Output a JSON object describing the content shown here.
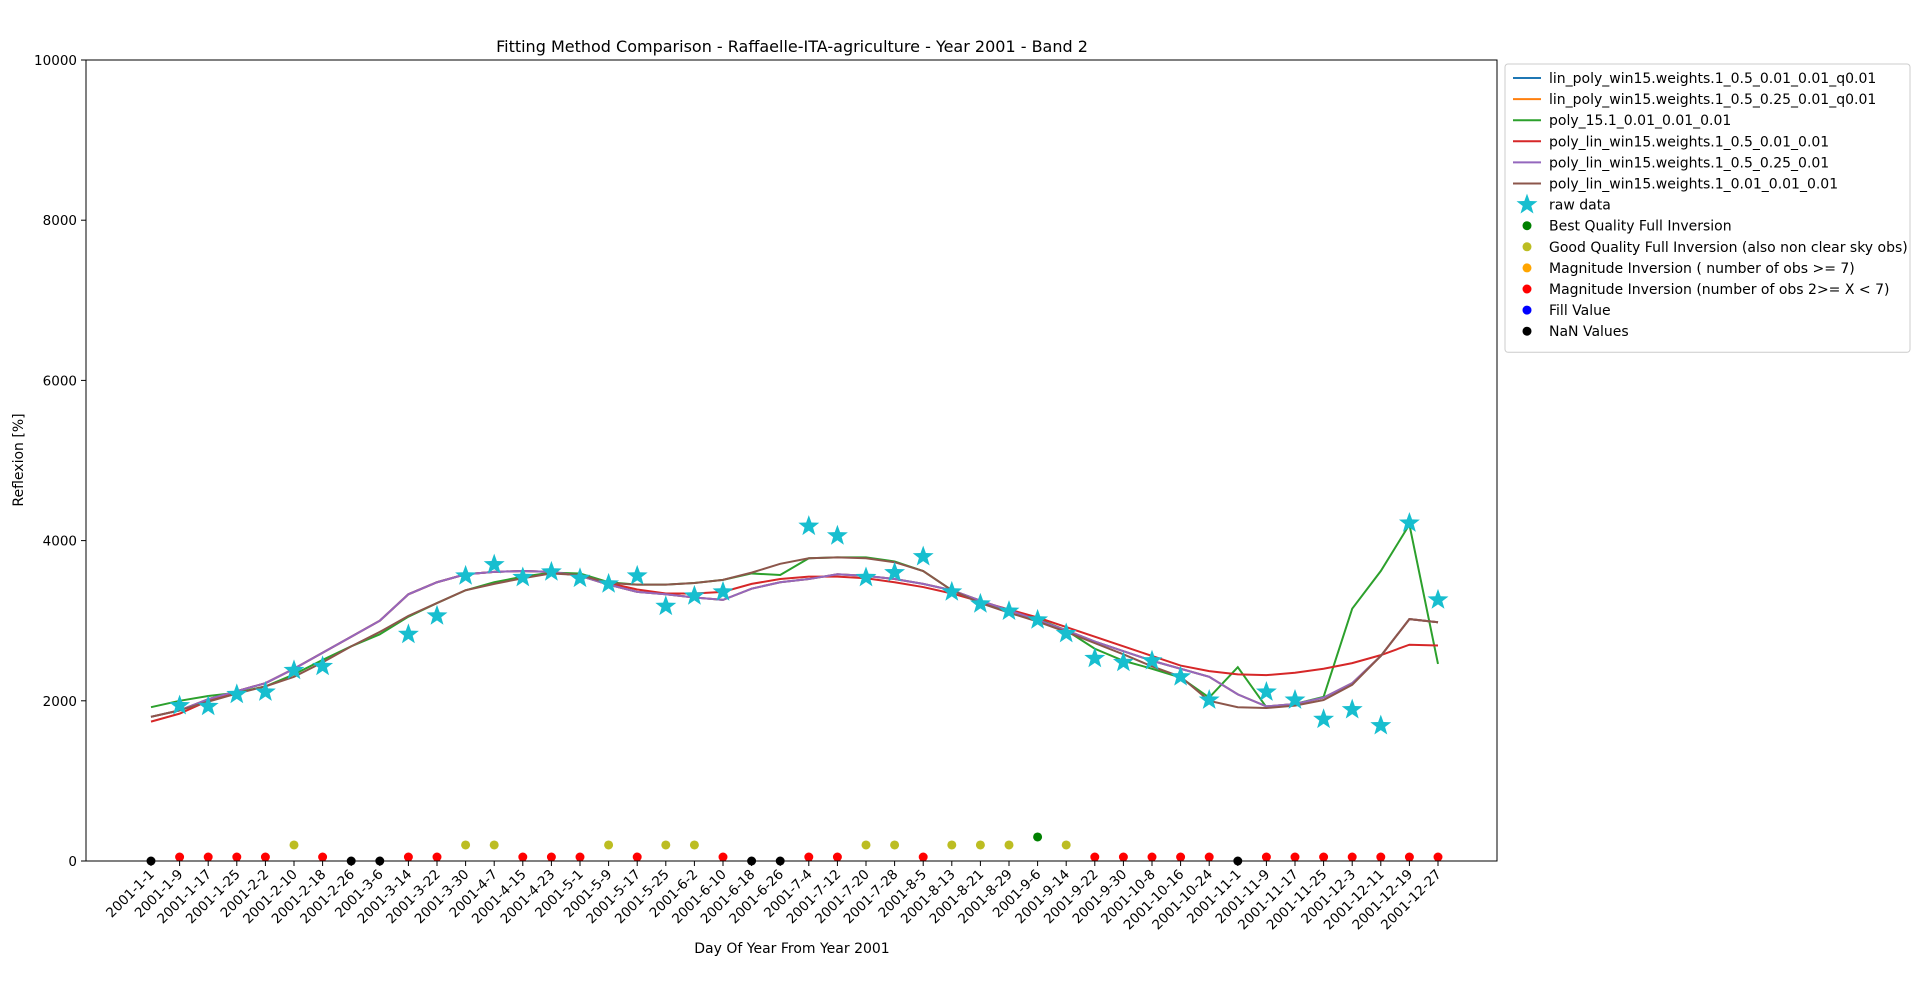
{
  "chart_data": {
    "type": "line",
    "title": "Fitting Method Comparison - Raffaelle-ITA-agriculture - Year 2001 - Band 2",
    "xlabel": "Day Of Year From Year 2001",
    "ylabel": "Reflexion [%]",
    "ylim": [
      0,
      10000
    ],
    "yticks": [
      0,
      2000,
      4000,
      6000,
      8000,
      10000
    ],
    "grid": false,
    "legend_position": "outside-right-top",
    "categories": [
      "2001-1-1",
      "2001-1-9",
      "2001-1-17",
      "2001-1-25",
      "2001-2-2",
      "2001-2-10",
      "2001-2-18",
      "2001-2-26",
      "2001-3-6",
      "2001-3-14",
      "2001-3-22",
      "2001-3-30",
      "2001-4-7",
      "2001-4-15",
      "2001-4-23",
      "2001-5-1",
      "2001-5-9",
      "2001-5-17",
      "2001-5-25",
      "2001-6-2",
      "2001-6-10",
      "2001-6-18",
      "2001-6-26",
      "2001-7-4",
      "2001-7-12",
      "2001-7-20",
      "2001-7-28",
      "2001-8-5",
      "2001-8-13",
      "2001-8-21",
      "2001-8-29",
      "2001-9-6",
      "2001-9-14",
      "2001-9-22",
      "2001-9-30",
      "2001-10-8",
      "2001-10-16",
      "2001-10-24",
      "2001-11-1",
      "2001-11-9",
      "2001-11-17",
      "2001-11-25",
      "2001-12-3",
      "2001-12-11",
      "2001-12-19",
      "2001-12-27"
    ],
    "series": [
      {
        "name": "lin_poly_win15.weights.1_0.5_0.01_0.01_q0.01",
        "color": "#1f77b4",
        "kind": "line",
        "values": [
          1800,
          1880,
          2020,
          2120,
          2220,
          2400,
          2600,
          2800,
          3000,
          3330,
          3480,
          3580,
          3610,
          3620,
          3610,
          3560,
          3450,
          3360,
          3330,
          3290,
          3260,
          3400,
          3480,
          3520,
          3580,
          3560,
          3520,
          3460,
          3380,
          3250,
          3130,
          3010,
          2880,
          2740,
          2620,
          2500,
          2400,
          2300,
          2080,
          1930,
          1960,
          2040,
          2220,
          2560,
          3020,
          2980
        ]
      },
      {
        "name": "lin_poly_win15.weights.1_0.5_0.25_0.01_q0.01",
        "color": "#ff7f0e",
        "kind": "line",
        "values": [
          1800,
          1880,
          2020,
          2120,
          2220,
          2400,
          2600,
          2800,
          3000,
          3330,
          3480,
          3580,
          3610,
          3620,
          3610,
          3560,
          3450,
          3360,
          3330,
          3290,
          3260,
          3400,
          3480,
          3520,
          3580,
          3560,
          3520,
          3460,
          3380,
          3250,
          3130,
          3010,
          2880,
          2740,
          2620,
          2500,
          2400,
          2300,
          2080,
          1930,
          1960,
          2040,
          2220,
          2560,
          3020,
          2980
        ]
      },
      {
        "name": "poly_15.1_0.01_0.01_0.01",
        "color": "#2ca02c",
        "kind": "line",
        "values": [
          1920,
          2000,
          2060,
          2100,
          2180,
          2330,
          2510,
          2680,
          2830,
          3050,
          3220,
          3380,
          3480,
          3550,
          3600,
          3590,
          3480,
          3450,
          3450,
          3470,
          3510,
          3590,
          3570,
          3780,
          3790,
          3790,
          3740,
          3620,
          3380,
          3230,
          3130,
          3020,
          2880,
          2650,
          2500,
          2400,
          2290,
          2040,
          2420,
          1920,
          1960,
          2050,
          3150,
          3620,
          4200,
          2460
        ]
      },
      {
        "name": "poly_lin_win15.weights.1_0.5_0.01_0.01",
        "color": "#d62728",
        "kind": "line",
        "values": [
          1740,
          1840,
          2000,
          2120,
          2220,
          2400,
          2600,
          2800,
          3000,
          3330,
          3480,
          3580,
          3610,
          3620,
          3610,
          3560,
          3470,
          3390,
          3340,
          3340,
          3360,
          3460,
          3520,
          3550,
          3550,
          3530,
          3480,
          3420,
          3340,
          3240,
          3140,
          3040,
          2920,
          2800,
          2680,
          2560,
          2440,
          2370,
          2330,
          2320,
          2350,
          2400,
          2470,
          2570,
          2700,
          2690
        ]
      },
      {
        "name": "poly_lin_win15.weights.1_0.5_0.25_0.01",
        "color": "#9467bd",
        "kind": "line",
        "values": [
          1800,
          1880,
          2020,
          2120,
          2220,
          2400,
          2600,
          2800,
          3000,
          3330,
          3480,
          3580,
          3610,
          3620,
          3610,
          3560,
          3450,
          3360,
          3330,
          3290,
          3260,
          3400,
          3480,
          3520,
          3580,
          3560,
          3520,
          3460,
          3380,
          3250,
          3130,
          3010,
          2880,
          2740,
          2620,
          2500,
          2400,
          2300,
          2080,
          1930,
          1960,
          2040,
          2220,
          2560,
          3020,
          2980
        ]
      },
      {
        "name": "poly_lin_win15.weights.1_0.01_0.01_0.01",
        "color": "#8c564b",
        "kind": "line",
        "values": [
          1800,
          1880,
          1990,
          2090,
          2180,
          2300,
          2480,
          2680,
          2860,
          3060,
          3220,
          3380,
          3460,
          3530,
          3590,
          3570,
          3470,
          3450,
          3450,
          3470,
          3510,
          3600,
          3710,
          3780,
          3790,
          3780,
          3730,
          3620,
          3380,
          3220,
          3100,
          2990,
          2860,
          2720,
          2580,
          2430,
          2300,
          2000,
          1920,
          1910,
          1940,
          2010,
          2200,
          2560,
          3020,
          2980
        ]
      },
      {
        "name": "raw data",
        "color": "#17becf",
        "kind": "star",
        "values": [
          null,
          1940,
          1930,
          2080,
          2110,
          2380,
          2430,
          null,
          null,
          2830,
          3060,
          3560,
          3700,
          3540,
          3610,
          3530,
          3460,
          3560,
          3180,
          3310,
          3360,
          null,
          null,
          4180,
          4060,
          3540,
          3600,
          3800,
          3360,
          3210,
          3120,
          3010,
          2840,
          2530,
          2480,
          2500,
          2300,
          2010,
          null,
          2110,
          2010,
          1770,
          1890,
          1690,
          4220,
          3260
        ]
      },
      {
        "name": "Best Quality Full Inversion",
        "color": "#008000",
        "kind": "dot",
        "values": [
          null,
          null,
          null,
          null,
          null,
          null,
          null,
          null,
          null,
          null,
          null,
          null,
          null,
          null,
          null,
          null,
          null,
          null,
          null,
          null,
          null,
          null,
          null,
          null,
          null,
          null,
          null,
          null,
          null,
          null,
          null,
          300,
          null,
          null,
          null,
          null,
          null,
          null,
          null,
          null,
          null,
          null,
          null,
          null,
          null,
          null
        ]
      },
      {
        "name": "Good Quality Full Inversion (also non clear sky obs)",
        "color": "#bcbd22",
        "kind": "dot",
        "values": [
          null,
          null,
          null,
          null,
          null,
          200,
          null,
          null,
          null,
          null,
          null,
          200,
          200,
          null,
          null,
          null,
          200,
          null,
          200,
          200,
          null,
          null,
          null,
          null,
          null,
          200,
          200,
          null,
          200,
          200,
          200,
          null,
          200,
          null,
          null,
          null,
          null,
          null,
          null,
          null,
          null,
          null,
          null,
          null,
          null,
          null
        ]
      },
      {
        "name": "Magnitude Inversion ( number of obs >= 7)",
        "color": "#ffa500",
        "kind": "dot",
        "values": [
          null,
          null,
          null,
          null,
          null,
          null,
          null,
          null,
          null,
          null,
          null,
          null,
          null,
          null,
          null,
          null,
          null,
          null,
          null,
          null,
          null,
          null,
          null,
          null,
          null,
          null,
          null,
          null,
          null,
          null,
          null,
          null,
          null,
          null,
          null,
          null,
          null,
          null,
          null,
          null,
          null,
          null,
          null,
          null,
          null,
          null
        ]
      },
      {
        "name": "Magnitude Inversion (number of obs 2>= X < 7)",
        "color": "#ff0000",
        "kind": "dot",
        "values": [
          null,
          50,
          50,
          50,
          50,
          null,
          50,
          null,
          null,
          50,
          50,
          null,
          null,
          50,
          50,
          50,
          null,
          50,
          null,
          null,
          50,
          null,
          null,
          50,
          50,
          null,
          null,
          50,
          null,
          null,
          null,
          null,
          null,
          50,
          50,
          50,
          50,
          50,
          null,
          50,
          50,
          50,
          50,
          50,
          50,
          50
        ]
      },
      {
        "name": "Fill Value",
        "color": "#0000ff",
        "kind": "dot",
        "values": [
          null,
          null,
          null,
          null,
          null,
          null,
          null,
          null,
          null,
          null,
          null,
          null,
          null,
          null,
          null,
          null,
          null,
          null,
          null,
          null,
          null,
          null,
          null,
          null,
          null,
          null,
          null,
          null,
          null,
          null,
          null,
          null,
          null,
          null,
          null,
          null,
          null,
          null,
          null,
          null,
          null,
          null,
          null,
          null,
          null,
          null
        ]
      },
      {
        "name": "NaN Values",
        "color": "#000000",
        "kind": "dot",
        "values": [
          0,
          null,
          null,
          null,
          null,
          null,
          null,
          0,
          0,
          null,
          null,
          null,
          null,
          null,
          null,
          null,
          null,
          null,
          null,
          null,
          null,
          0,
          0,
          null,
          null,
          null,
          null,
          null,
          null,
          null,
          null,
          null,
          null,
          null,
          null,
          null,
          null,
          null,
          0,
          null,
          null,
          null,
          null,
          null,
          null,
          null
        ]
      }
    ]
  }
}
